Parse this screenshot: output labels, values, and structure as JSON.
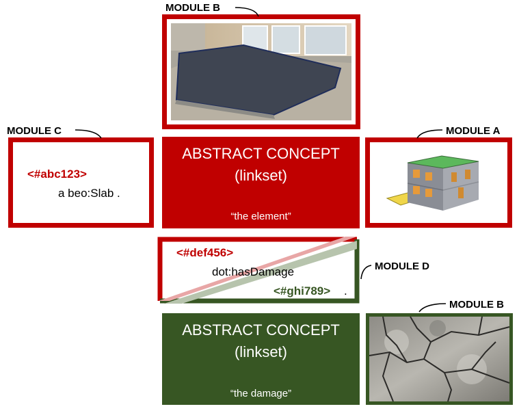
{
  "modules": {
    "module_b_top": "MODULE B",
    "module_c": "MODULE C",
    "module_a": "MODULE A",
    "module_d": "MODULE D",
    "module_b_bottom": "MODULE B"
  },
  "concept_element": {
    "title_line1": "ABSTRACT CONCEPT",
    "title_line2": "(linkset)",
    "quote": "“the element”"
  },
  "concept_damage": {
    "title_line1": "ABSTRACT CONCEPT",
    "title_line2": "(linkset)",
    "quote": "“the damage”"
  },
  "module_c_code": {
    "id": "<#abc123>",
    "statement": "a beo:Slab ."
  },
  "module_d_code": {
    "subject": "<#def456>",
    "predicate": "dot:hasDamage",
    "object": "<#ghi789>",
    "terminator": "."
  },
  "colors": {
    "red": "#c00000",
    "green": "#375623"
  },
  "images": {
    "module_b_top": "concrete-slab-photo",
    "module_a": "building-3d-model",
    "module_b_bottom": "cracked-concrete-photo"
  }
}
